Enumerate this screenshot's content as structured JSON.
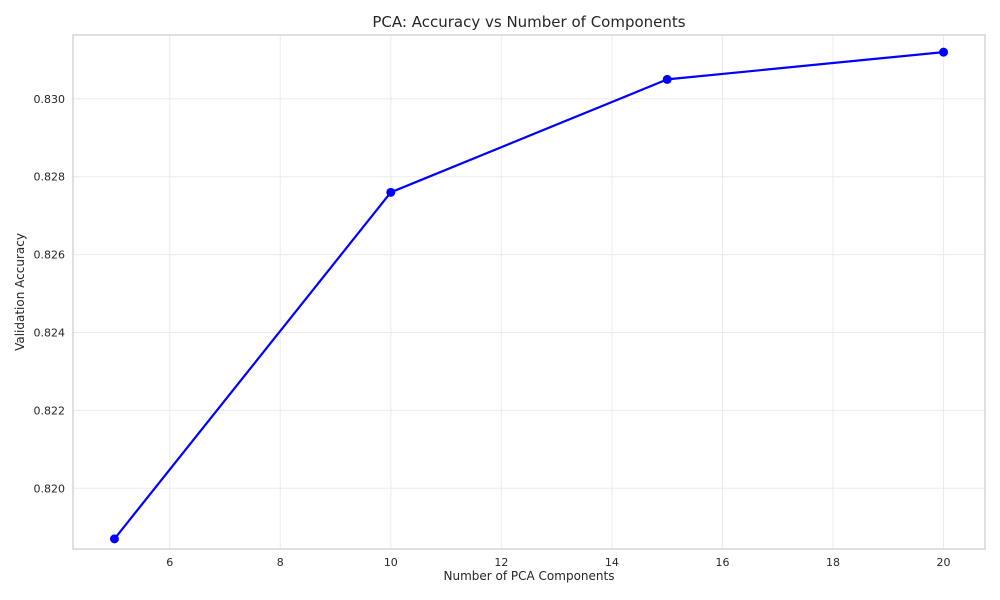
{
  "chart_data": {
    "type": "line",
    "title": "PCA: Accuracy vs Number of Components",
    "xlabel": "Number of PCA Components",
    "ylabel": "Validation Accuracy",
    "x": [
      5,
      10,
      15,
      20
    ],
    "series": [
      {
        "values": [
          0.8187,
          0.8276,
          0.8305,
          0.8312
        ],
        "color": "#0000ff",
        "marker": "circle"
      }
    ],
    "xlim": [
      4.25,
      20.75
    ],
    "ylim": [
      0.81844,
      0.83164
    ],
    "xticks": [
      6,
      8,
      10,
      12,
      14,
      16,
      18,
      20
    ],
    "xtick_labels": [
      "6",
      "8",
      "10",
      "12",
      "14",
      "16",
      "18",
      "20"
    ],
    "yticks": [
      0.82,
      0.822,
      0.824,
      0.826,
      0.828,
      0.83
    ],
    "ytick_labels": [
      "0.820",
      "0.822",
      "0.824",
      "0.826",
      "0.828",
      "0.830"
    ],
    "grid": true,
    "legend": "none"
  }
}
